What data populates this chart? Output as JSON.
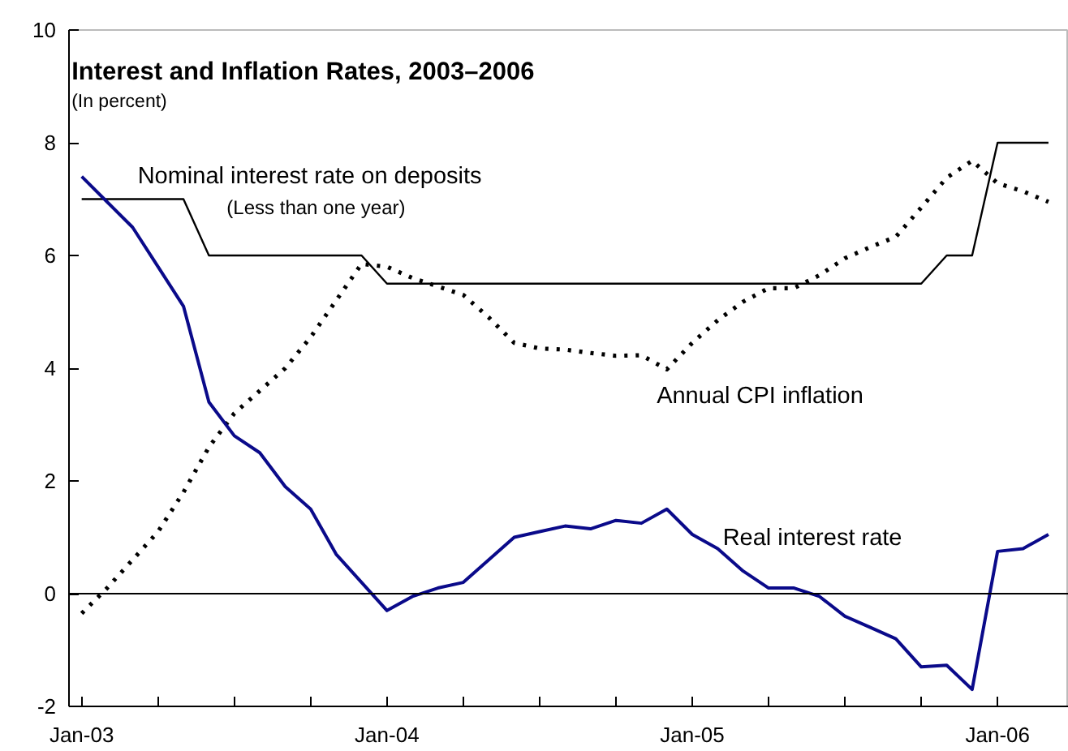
{
  "chart_data": {
    "type": "line",
    "title": "Interest and Inflation Rates, 2003–2006",
    "subtitle": "(In percent)",
    "x": [
      "2003-01",
      "2003-02",
      "2003-03",
      "2003-04",
      "2003-05",
      "2003-06",
      "2003-07",
      "2003-08",
      "2003-09",
      "2003-10",
      "2003-11",
      "2003-12",
      "2004-01",
      "2004-02",
      "2004-03",
      "2004-04",
      "2004-05",
      "2004-06",
      "2004-07",
      "2004-08",
      "2004-09",
      "2004-10",
      "2004-11",
      "2004-12",
      "2005-01",
      "2005-02",
      "2005-03",
      "2005-04",
      "2005-05",
      "2005-06",
      "2005-07",
      "2005-08",
      "2005-09",
      "2005-10",
      "2005-11",
      "2005-12",
      "2006-01",
      "2006-02",
      "2006-03"
    ],
    "series": [
      {
        "name": "Nominal interest rate on deposits",
        "color": "#000000",
        "line_style": "solid",
        "values": [
          7,
          7,
          7,
          7,
          7,
          6,
          6,
          6,
          6,
          6,
          6,
          6,
          5.5,
          5.5,
          5.5,
          5.5,
          5.5,
          5.5,
          5.5,
          5.5,
          5.5,
          5.5,
          5.5,
          5.5,
          5.5,
          5.5,
          5.5,
          5.5,
          5.5,
          5.5,
          5.5,
          5.5,
          5.5,
          5.5,
          6,
          6,
          8,
          8,
          8
        ]
      },
      {
        "name": "Annual CPI inflation",
        "color": "#000000",
        "line_style": "dotted",
        "values": [
          -0.35,
          0.1,
          0.6,
          1.1,
          1.8,
          2.6,
          3.2,
          3.6,
          4.0,
          4.55,
          5.2,
          5.85,
          5.8,
          5.6,
          5.45,
          5.3,
          4.9,
          4.45,
          4.35,
          4.33,
          4.27,
          4.22,
          4.23,
          3.98,
          4.45,
          4.85,
          5.18,
          5.42,
          5.42,
          5.65,
          5.95,
          6.15,
          6.33,
          6.85,
          7.38,
          7.68,
          7.28,
          7.14,
          6.95
        ]
      },
      {
        "name": "Real interest rate",
        "color": "#0a0a8a",
        "line_style": "solid",
        "values": [
          7.4,
          6.95,
          6.5,
          5.8,
          5.1,
          3.4,
          2.8,
          2.5,
          1.9,
          1.5,
          0.7,
          0.2,
          -0.3,
          -0.05,
          0.1,
          0.2,
          0.6,
          1.0,
          1.1,
          1.2,
          1.15,
          1.3,
          1.25,
          1.5,
          1.05,
          0.8,
          0.4,
          0.1,
          0.1,
          -0.05,
          -0.4,
          -0.6,
          -0.8,
          -1.3,
          -1.27,
          -1.7,
          0.75,
          0.8,
          1.05
        ]
      }
    ],
    "annotations": [
      "(Less than one year)"
    ],
    "ref_lines": [
      {
        "axis": "y",
        "value": 0,
        "color": "#000000"
      }
    ],
    "xlim": [
      "2002-12-16",
      "2006-03-25"
    ],
    "xticks": [
      {
        "value": "2003-01",
        "label": "Jan-03"
      },
      {
        "value": "2003-04",
        "label": null
      },
      {
        "value": "2003-07",
        "label": null
      },
      {
        "value": "2003-10",
        "label": null
      },
      {
        "value": "2004-01",
        "label": "Jan-04"
      },
      {
        "value": "2004-04",
        "label": null
      },
      {
        "value": "2004-07",
        "label": null
      },
      {
        "value": "2004-10",
        "label": null
      },
      {
        "value": "2005-01",
        "label": "Jan-05"
      },
      {
        "value": "2005-04",
        "label": null
      },
      {
        "value": "2005-07",
        "label": null
      },
      {
        "value": "2005-10",
        "label": null
      },
      {
        "value": "2006-01",
        "label": "Jan-06"
      }
    ],
    "ylim": [
      -2,
      10
    ],
    "yticks": [
      -2,
      0,
      2,
      4,
      6,
      8,
      10
    ],
    "grid": false,
    "marker": "none"
  }
}
